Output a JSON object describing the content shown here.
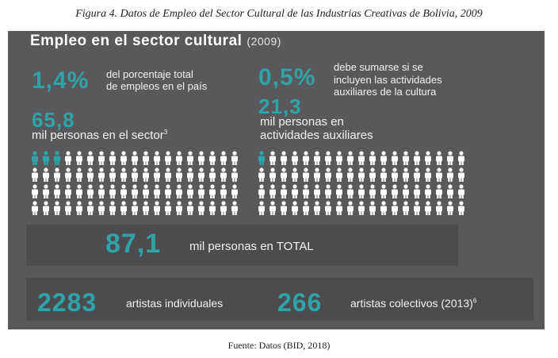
{
  "figure_caption": "Figura 4. Datos de Empleo del Sector Cultural de las Industrias Creativas de Bolivia, 2009",
  "source": "Fuente: Datos (BID, 2018)",
  "colors": {
    "panel": "#59595b",
    "accent": "#2fa3a8",
    "icon": "#ffffff"
  },
  "chart_data": {
    "type": "infographic",
    "title": "Empleo en el sector cultural",
    "title_year": "(2009)",
    "stats": [
      {
        "value": "1,4%",
        "label_line1": "del porcentaje total",
        "label_line2": "de empleos en el país"
      },
      {
        "value": "0,5%",
        "label_line1": "debe sumarse si se",
        "label_line2": "incluyen las actividades",
        "label_line3": "auxiliares de la cultura"
      },
      {
        "value": "65,8",
        "label": "mil personas en el sector",
        "label_sup": "3"
      },
      {
        "value": "21,3",
        "label_line1": "mil personas en",
        "label_line2": "actividades auxiliares"
      },
      {
        "value": "87,1",
        "label": "mil personas en TOTAL"
      },
      {
        "value": "2283",
        "label": "artistas individuales"
      },
      {
        "value": "266",
        "label": "artistas colectivos (2013)",
        "label_sup": "6"
      }
    ],
    "pictogram": {
      "sector": {
        "rows": 4,
        "per_row": 19,
        "highlighted": 3,
        "value": 65.8
      },
      "auxiliary": {
        "rows": 4,
        "per_row": 19,
        "highlighted": 1,
        "value": 21.3
      }
    }
  }
}
